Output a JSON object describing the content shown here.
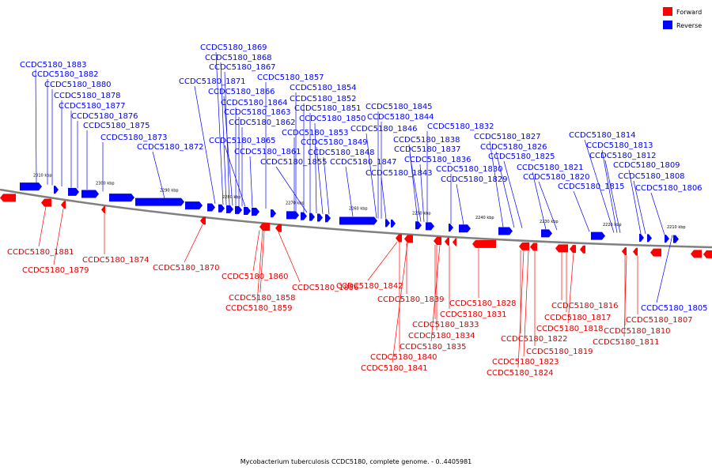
{
  "caption": "Mycobacterium tuberculosis CCDC5180, complete genome. - 0..4405981",
  "legend": [
    {
      "label": "Forward",
      "color": "#ff0000"
    },
    {
      "label": "Reverse",
      "color": "#0000ff"
    }
  ],
  "colors": {
    "forward": "#ff0000",
    "reverse": "#0000ff",
    "backbone": "#808080"
  },
  "ticks": [
    "2310 kbp",
    "2300 kbp",
    "2290 kbp",
    "2280 kbp",
    "2270 kbp",
    "2260 kbp",
    "2250 kbp",
    "2240 kbp",
    "2230 kbp",
    "2220 kbp",
    "2210 kbp"
  ],
  "reverse_genes": [
    "CCDC5180_1883",
    "CCDC5180_1882",
    "CCDC5180_1880",
    "CCDC5180_1878",
    "CCDC5180_1877",
    "CCDC5180_1876",
    "CCDC5180_1875",
    "CCDC5180_1873",
    "CCDC5180_1872",
    "CCDC5180_1871",
    "CCDC5180_1869",
    "CCDC5180_1868",
    "CCDC5180_1867",
    "CCDC5180_1866",
    "CCDC5180_1864",
    "CCDC5180_1863",
    "CCDC5180_1862",
    "CCDC5180_1865",
    "CCDC5180_1861",
    "CCDC5180_1857",
    "CCDC5180_1854",
    "CCDC5180_1852",
    "CCDC5180_1851",
    "CCDC5180_1850",
    "CCDC5180_1853",
    "CCDC5180_1849",
    "CCDC5180_1848",
    "CCDC5180_1855",
    "CCDC5180_1847",
    "CCDC5180_1845",
    "CCDC5180_1844",
    "CCDC5180_1846",
    "CCDC5180_1843",
    "CCDC5180_1838",
    "CCDC5180_1837",
    "CCDC5180_1836",
    "CCDC5180_1832",
    "CCDC5180_1830",
    "CCDC5180_1829",
    "CCDC5180_1827",
    "CCDC5180_1826",
    "CCDC5180_1825",
    "CCDC5180_1821",
    "CCDC5180_1820",
    "CCDC5180_1815",
    "CCDC5180_1814",
    "CCDC5180_1813",
    "CCDC5180_1812",
    "CCDC5180_1809",
    "CCDC5180_1808",
    "CCDC5180_1806",
    "CCDC5180_1805"
  ],
  "forward_genes": [
    "CCDC5180_1881",
    "CCDC5180_1879",
    "CCDC5180_1874",
    "CCDC5180_1870",
    "CCDC5180_1860",
    "CCDC5180_1856",
    "CCDC5180_1858",
    "CCDC5180_1859",
    "CCDC5180_1842",
    "CCDC5180_1839",
    "CCDC5180_1831",
    "CCDC5180_1828",
    "CCDC5180_1833",
    "CCDC5180_1834",
    "CCDC5180_1835",
    "CCDC5180_1840",
    "CCDC5180_1841",
    "CCDC5180_1816",
    "CCDC5180_1817",
    "CCDC5180_1818",
    "CCDC5180_1822",
    "CCDC5180_1819",
    "CCDC5180_1823",
    "CCDC5180_1824",
    "CCDC5180_1807",
    "CCDC5180_1810",
    "CCDC5180_1811"
  ]
}
